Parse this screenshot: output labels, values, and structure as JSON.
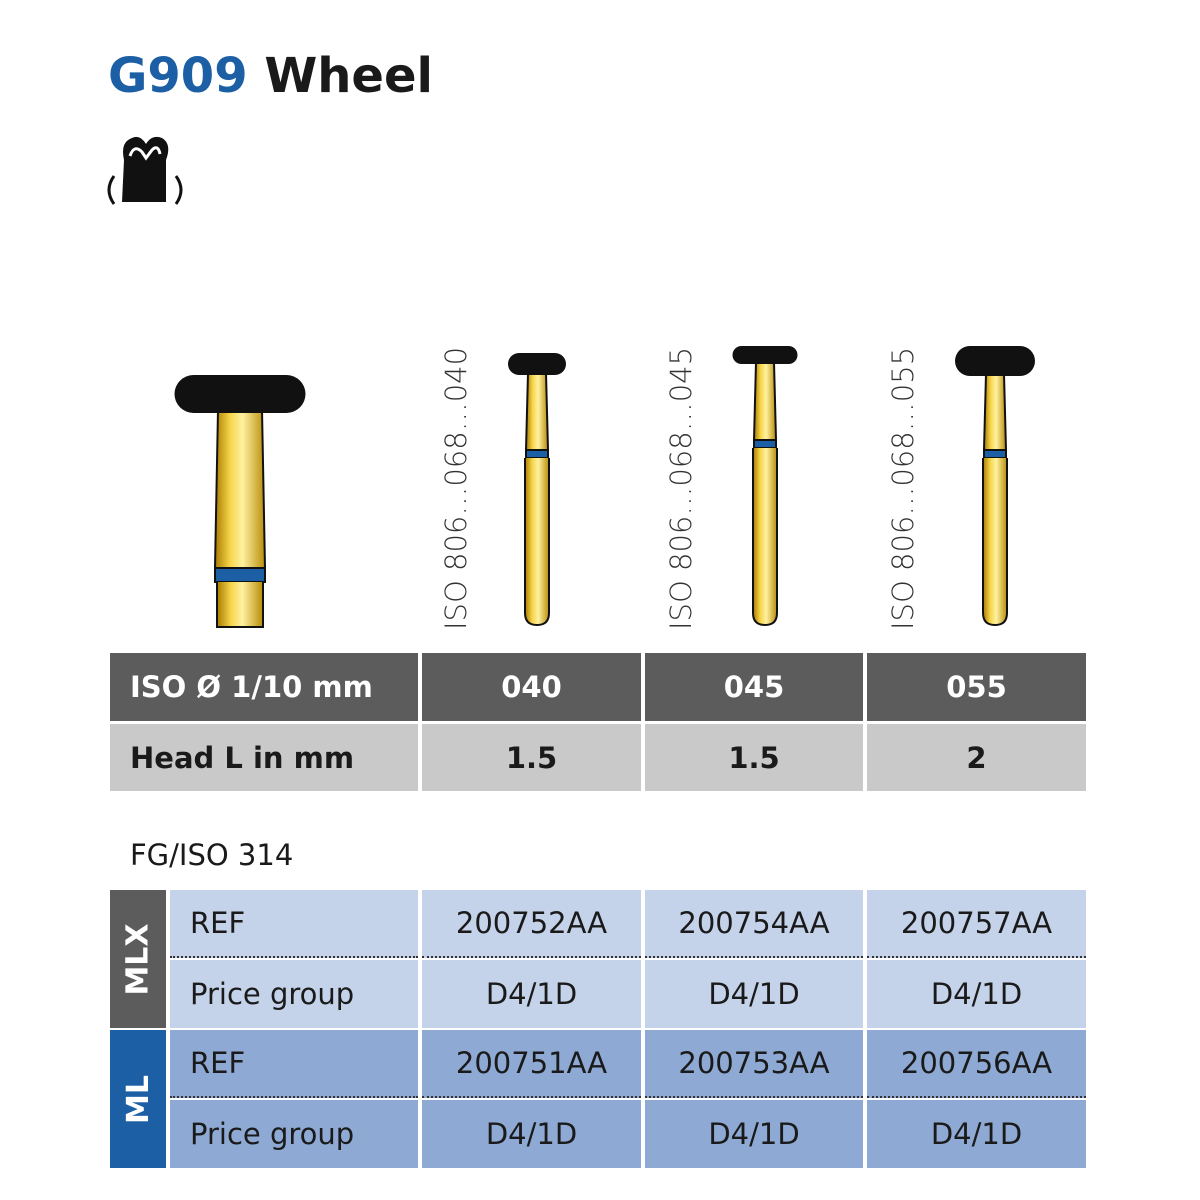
{
  "header": {
    "code": "G909",
    "name": "Wheel"
  },
  "instruments": [
    {
      "iso_label": "ISO 806…068…040"
    },
    {
      "iso_label": "ISO 806…068…045"
    },
    {
      "iso_label": "ISO 806…068…055"
    }
  ],
  "dimensions_table": {
    "header": {
      "label": "ISO Ø 1/10 mm",
      "sizes": [
        "040",
        "045",
        "055"
      ]
    },
    "row": {
      "label": "Head L in mm",
      "values": [
        "1.5",
        "1.5",
        "2"
      ]
    }
  },
  "shank": "FG/ISO 314",
  "order_table": {
    "groups": [
      {
        "name": "MLX",
        "rows": [
          {
            "label": "REF",
            "values": [
              "200752AA",
              "200754AA",
              "200757AA"
            ]
          },
          {
            "label": "Price group",
            "values": [
              "D4/1D",
              "D4/1D",
              "D4/1D"
            ]
          }
        ]
      },
      {
        "name": "ML",
        "rows": [
          {
            "label": "REF",
            "values": [
              "200751AA",
              "200753AA",
              "200756AA"
            ]
          },
          {
            "label": "Price group",
            "values": [
              "D4/1D",
              "D4/1D",
              "D4/1D"
            ]
          }
        ]
      }
    ]
  }
}
